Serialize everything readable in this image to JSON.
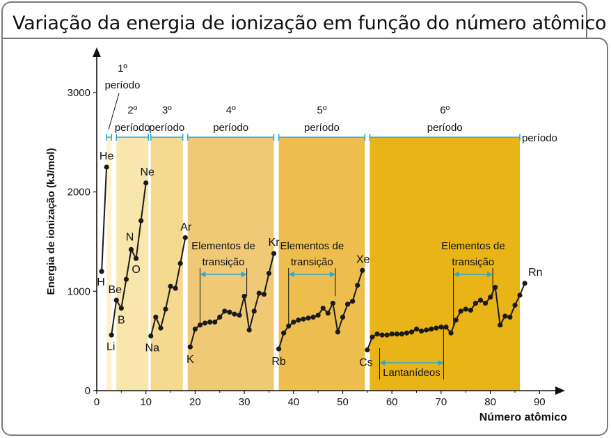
{
  "title": "Variação da energia de ionização em função do número atômico",
  "chart_data": {
    "type": "line",
    "ylabel": "Energia de ionização (kJ/mol)",
    "xlabel": "Número atômico",
    "xlim": [
      0,
      95
    ],
    "ylim": [
      0,
      3300
    ],
    "xticks": [
      0,
      10,
      20,
      30,
      40,
      50,
      60,
      70,
      80,
      90
    ],
    "yticks": [
      0,
      1000,
      2000,
      3000
    ],
    "series": [
      {
        "values": [
          [
            1,
            1200
          ],
          [
            2,
            2250
          ],
          [
            3,
            560
          ],
          [
            4,
            910
          ],
          [
            5,
            830
          ],
          [
            6,
            1120
          ],
          [
            7,
            1420
          ],
          [
            8,
            1330
          ],
          [
            9,
            1710
          ],
          [
            10,
            2090
          ],
          [
            11,
            550
          ],
          [
            12,
            740
          ],
          [
            13,
            630
          ],
          [
            14,
            820
          ],
          [
            15,
            1050
          ],
          [
            16,
            1030
          ],
          [
            17,
            1280
          ],
          [
            18,
            1540
          ],
          [
            19,
            440
          ],
          [
            20,
            620
          ],
          [
            21,
            660
          ],
          [
            22,
            680
          ],
          [
            23,
            690
          ],
          [
            24,
            690
          ],
          [
            25,
            740
          ],
          [
            26,
            800
          ],
          [
            27,
            790
          ],
          [
            28,
            770
          ],
          [
            29,
            760
          ],
          [
            30,
            950
          ],
          [
            31,
            610
          ],
          [
            32,
            800
          ],
          [
            33,
            980
          ],
          [
            34,
            970
          ],
          [
            35,
            1180
          ],
          [
            36,
            1380
          ],
          [
            37,
            420
          ],
          [
            38,
            580
          ],
          [
            39,
            650
          ],
          [
            40,
            690
          ],
          [
            41,
            710
          ],
          [
            42,
            720
          ],
          [
            43,
            730
          ],
          [
            44,
            740
          ],
          [
            45,
            760
          ],
          [
            46,
            830
          ],
          [
            47,
            780
          ],
          [
            48,
            880
          ],
          [
            49,
            590
          ],
          [
            50,
            740
          ],
          [
            51,
            870
          ],
          [
            52,
            900
          ],
          [
            53,
            1060
          ],
          [
            54,
            1210
          ],
          [
            55,
            410
          ],
          [
            56,
            540
          ],
          [
            57,
            570
          ],
          [
            58,
            560
          ],
          [
            59,
            560
          ],
          [
            60,
            570
          ],
          [
            61,
            570
          ],
          [
            62,
            570
          ],
          [
            63,
            580
          ],
          [
            64,
            590
          ],
          [
            65,
            620
          ],
          [
            66,
            600
          ],
          [
            67,
            610
          ],
          [
            68,
            620
          ],
          [
            69,
            630
          ],
          [
            70,
            640
          ],
          [
            71,
            640
          ],
          [
            72,
            580
          ],
          [
            73,
            710
          ],
          [
            74,
            800
          ],
          [
            75,
            820
          ],
          [
            76,
            810
          ],
          [
            77,
            880
          ],
          [
            78,
            910
          ],
          [
            79,
            880
          ],
          [
            80,
            940
          ],
          [
            81,
            1040
          ],
          [
            82,
            660
          ],
          [
            83,
            750
          ],
          [
            84,
            740
          ],
          [
            85,
            860
          ],
          [
            86,
            960
          ],
          [
            87,
            1080
          ]
        ]
      }
    ],
    "element_labels": [
      {
        "symbol": "H",
        "z": 1
      },
      {
        "symbol": "He",
        "z": 2
      },
      {
        "symbol": "Li",
        "z": 3
      },
      {
        "symbol": "Be",
        "z": 4
      },
      {
        "symbol": "B",
        "z": 5
      },
      {
        "symbol": "N",
        "z": 7
      },
      {
        "symbol": "O",
        "z": 8
      },
      {
        "symbol": "Ne",
        "z": 10
      },
      {
        "symbol": "Na",
        "z": 11
      },
      {
        "symbol": "Ar",
        "z": 18
      },
      {
        "symbol": "K",
        "z": 19
      },
      {
        "symbol": "Kr",
        "z": 36
      },
      {
        "symbol": "Rb",
        "z": 37
      },
      {
        "symbol": "Xe",
        "z": 54
      },
      {
        "symbol": "Cs",
        "z": 55
      },
      {
        "symbol": "Rn",
        "z": 87
      }
    ],
    "periods": [
      {
        "number": "1º",
        "label": "período",
        "x_range": [
          2,
          3
        ],
        "color": "#fdf3cf"
      },
      {
        "number": "2º",
        "label": "período",
        "x_range": [
          4,
          10.5
        ],
        "color": "#f9e6ad"
      },
      {
        "number": "3º",
        "label": "período",
        "x_range": [
          11,
          17.5
        ],
        "color": "#f5d98f"
      },
      {
        "number": "4º",
        "label": "período",
        "x_range": [
          18.5,
          36
        ],
        "color": "#f0c977"
      },
      {
        "number": "5º",
        "label": "período",
        "x_range": [
          37,
          54.5
        ],
        "color": "#edbd4d"
      },
      {
        "number": "6º",
        "label": "período",
        "x_range": [
          55.5,
          86
        ],
        "color": "#e8b418"
      }
    ],
    "extra_period_label": "período",
    "annotations": [
      {
        "text": [
          "Elementos de",
          "transição"
        ],
        "x_range": [
          21,
          30.5
        ]
      },
      {
        "text": [
          "Elementos de",
          "transição"
        ],
        "x_range": [
          39,
          48.5
        ]
      },
      {
        "text": [
          "Elementos de",
          "transição"
        ],
        "x_range": [
          72.5,
          80.5
        ]
      },
      {
        "text": [
          "Lantanídeos"
        ],
        "x_range": [
          57.5,
          70.5
        ]
      }
    ],
    "colors": {
      "line": "#1a1a1a",
      "bracket": "#2aa8d8",
      "axis": "#111111"
    }
  }
}
